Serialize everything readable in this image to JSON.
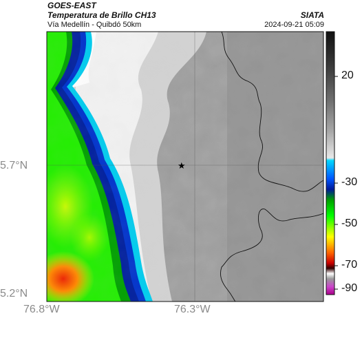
{
  "header": {
    "satellite": "GOES-EAST",
    "product": "Temperatura de Brillo CH13",
    "location": "Vía Medellín - Quibdó 50km",
    "agency": "SIATA",
    "datetime": "2024-09-21 05:09"
  },
  "axes": {
    "lat_labels": [
      "5.7°N",
      "5.2°N"
    ],
    "lon_labels": [
      "76.8°W",
      "76.3°W"
    ]
  },
  "colorbar": {
    "ticks": [
      "20",
      "-30",
      "-50",
      "-70",
      "-90"
    ],
    "stops": [
      "#111111",
      "#3a3a3a",
      "#6e6e6e",
      "#a8a8a8",
      "#e8e8e8",
      "#00d8ff",
      "#0055ff",
      "#001a99",
      "#00a000",
      "#00ff00",
      "#ffff00",
      "#ff6600",
      "#cc0000",
      "#330000",
      "#ffffff",
      "#999999",
      "#cc44cc",
      "#aa0088"
    ]
  },
  "map": {
    "marker": "star-icon",
    "colors": {
      "cold_cloud_green": "#22ee00",
      "cold_cloud_yellow": "#ffee00",
      "cold_cloud_red": "#ee3300",
      "edge_blue": "#001f9e",
      "edge_cyan": "#00ccee",
      "grey_warm": "#9a9a9a"
    }
  }
}
